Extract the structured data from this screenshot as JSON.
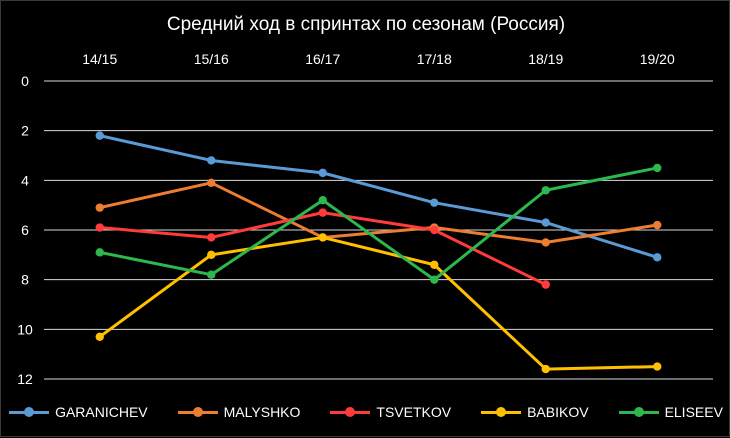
{
  "chart_data": {
    "type": "line",
    "title": "Средний ход в спринтах по сезонам (Россия)",
    "categories": [
      "14/15",
      "15/16",
      "16/17",
      "17/18",
      "18/19",
      "19/20"
    ],
    "y_ticks": [
      "0",
      "2",
      "4",
      "6",
      "8",
      "10",
      "12"
    ],
    "ylim": [
      0,
      12
    ],
    "y_reversed": true,
    "x_axis_position": "top",
    "grid": true,
    "legend_position": "bottom",
    "series": [
      {
        "name": "GARANICHEV",
        "color": "#5b9bd5",
        "values": [
          2.2,
          3.2,
          3.7,
          4.9,
          5.7,
          7.1
        ]
      },
      {
        "name": "MALYSHKO",
        "color": "#ed7d31",
        "values": [
          5.1,
          4.1,
          6.3,
          5.9,
          6.5,
          5.8
        ]
      },
      {
        "name": "TSVETKOV",
        "color": "#ff3b3b",
        "values": [
          5.9,
          6.3,
          5.3,
          6.0,
          8.2,
          null
        ]
      },
      {
        "name": "BABIKOV",
        "color": "#ffc000",
        "values": [
          10.3,
          7.0,
          6.3,
          7.4,
          11.6,
          11.5
        ]
      },
      {
        "name": "ELISEEV",
        "color": "#2db84d",
        "values": [
          6.9,
          7.8,
          4.8,
          8.0,
          4.4,
          3.5
        ]
      }
    ]
  }
}
